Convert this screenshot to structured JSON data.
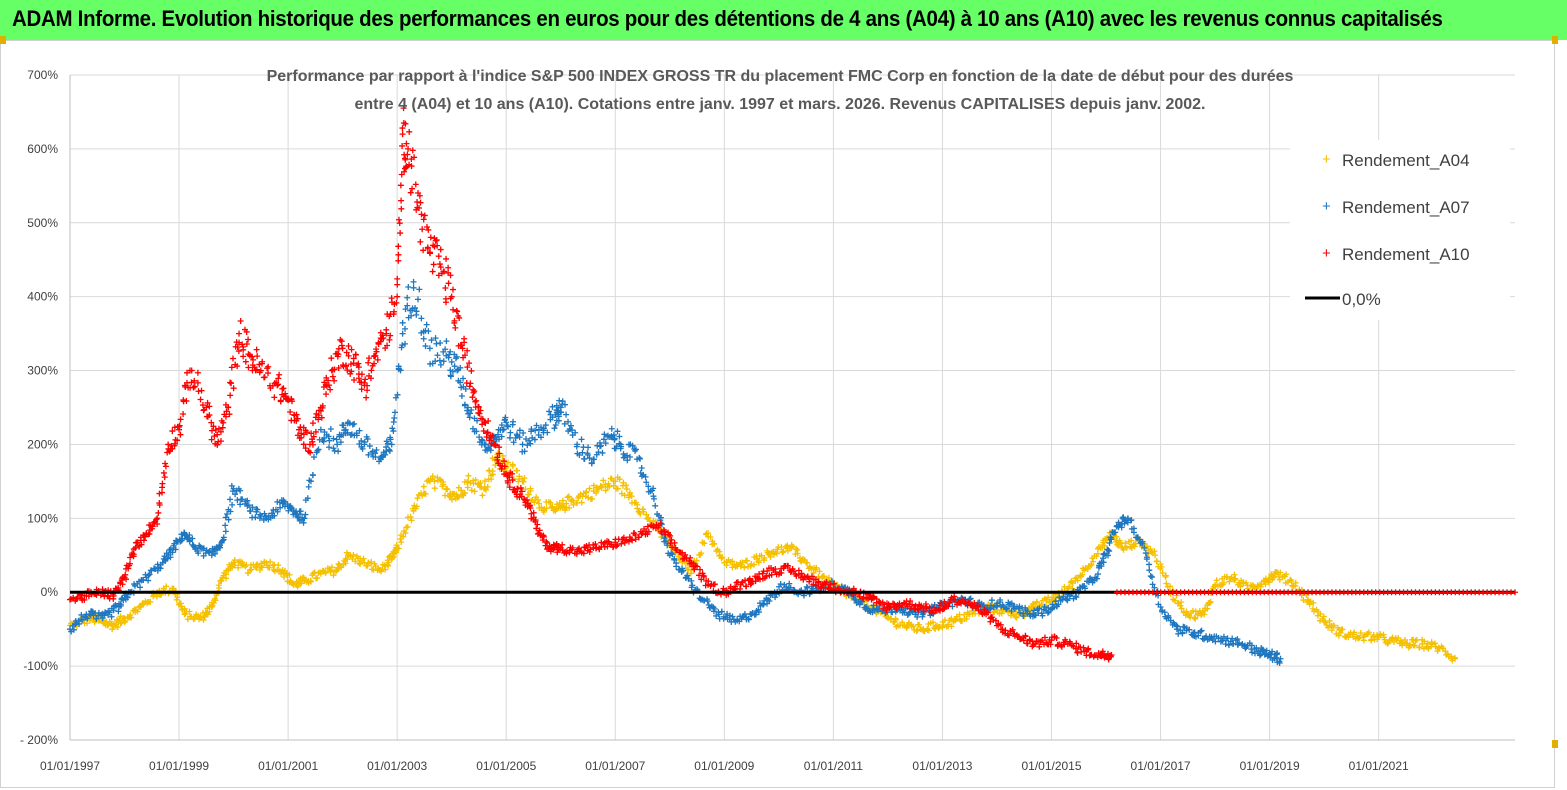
{
  "header": {
    "banner": "ADAM Informe. Evolution historique des performances en euros pour des détentions de 4 ans (A04) à 10 ans (A10) avec les revenus connus capitalisés"
  },
  "colors": {
    "banner_bg": "#66ff66",
    "A04": "#f5c000",
    "A07": "#1f77c0",
    "A10": "#ff0000",
    "zero_line": "#000000"
  },
  "chart_data": {
    "type": "scatter",
    "title_line1": "Performance par rapport à l'indice S&P 500 INDEX GROSS TR  du placement FMC Corp en fonction de la date de début pour des durées",
    "title_line2": "entre 4 (A04) et 10 ans (A10). Cotations entre janv. 1997 et mars. 2026. Revenus CAPITALISES depuis janv. 2002.",
    "xlabel": "",
    "ylabel": "",
    "xlim": [
      1997.0,
      2023.5
    ],
    "ylim": [
      -200,
      700
    ],
    "y_ticks": [
      -200,
      -100,
      0,
      100,
      200,
      300,
      400,
      500,
      600,
      700
    ],
    "y_tick_labels": [
      "- 200%",
      "-100%",
      "0%",
      "100%",
      "200%",
      "300%",
      "400%",
      "500%",
      "600%",
      "700%"
    ],
    "x_ticks": [
      1997,
      1999,
      2001,
      2003,
      2005,
      2007,
      2009,
      2011,
      2013,
      2015,
      2017,
      2019,
      2021
    ],
    "x_tick_labels": [
      "01/01/1997",
      "01/01/1999",
      "01/01/2001",
      "01/01/2003",
      "01/01/2005",
      "01/01/2007",
      "01/01/2009",
      "01/01/2011",
      "01/01/2013",
      "01/01/2015",
      "01/01/2017",
      "01/01/2019",
      "01/01/2021"
    ],
    "legend": [
      "Rendement_A04",
      "Rendement_A07",
      "Rendement_A10",
      "0,0%"
    ],
    "legend_position": "top-right",
    "series": [
      {
        "name": "Rendement_A04",
        "marker": "+",
        "x": [
          1997.0,
          1997.4,
          1997.6,
          1997.8,
          1998.0,
          1998.3,
          1998.6,
          1998.9,
          1999.1,
          1999.4,
          1999.6,
          1999.8,
          2000.0,
          2000.3,
          2000.6,
          2000.9,
          2001.1,
          2001.3,
          2001.6,
          2001.9,
          2002.1,
          2002.4,
          2002.7,
          2002.9,
          2003.0,
          2003.3,
          2003.6,
          2003.9,
          2004.1,
          2004.3,
          2004.6,
          2004.8,
          2005.0,
          2005.3,
          2005.6,
          2005.9,
          2006.1,
          2006.4,
          2006.7,
          2007.0,
          2007.3,
          2007.6,
          2007.9,
          2008.2,
          2008.4,
          2008.7,
          2009.0,
          2009.3,
          2009.6,
          2009.9,
          2010.2,
          2010.5,
          2010.8,
          2011.1,
          2011.4,
          2011.7,
          2012.0,
          2012.3,
          2012.6,
          2012.9,
          2013.2,
          2013.5,
          2013.8,
          2014.1,
          2014.4,
          2014.7,
          2015.0,
          2015.3,
          2015.6,
          2015.9,
          2016.1,
          2016.3,
          2016.6,
          2016.9,
          2017.2,
          2017.5,
          2017.8,
          2018.0,
          2018.3,
          2018.6,
          2018.9,
          2019.1,
          2019.4,
          2019.7,
          2020.0,
          2020.3,
          2020.6,
          2020.9,
          2021.2,
          2021.5,
          2021.8,
          2022.1,
          2022.4
        ],
        "values": [
          -45,
          -35,
          -40,
          -45,
          -35,
          -20,
          0,
          5,
          -30,
          -35,
          -20,
          20,
          40,
          30,
          40,
          30,
          10,
          15,
          25,
          30,
          50,
          40,
          30,
          45,
          60,
          110,
          150,
          140,
          130,
          150,
          140,
          180,
          170,
          150,
          120,
          110,
          120,
          130,
          140,
          150,
          130,
          100,
          75,
          45,
          30,
          80,
          40,
          35,
          45,
          55,
          60,
          40,
          20,
          5,
          -10,
          -20,
          -35,
          -45,
          -50,
          -45,
          -40,
          -30,
          -20,
          -25,
          -30,
          -20,
          -10,
          5,
          30,
          60,
          80,
          60,
          70,
          50,
          0,
          -30,
          -30,
          10,
          20,
          5,
          15,
          25,
          15,
          -10,
          -40,
          -55,
          -60,
          -60,
          -65,
          -70,
          -70,
          -75,
          -90
        ]
      },
      {
        "name": "Rendement_A07",
        "marker": "+",
        "x": [
          1997.0,
          1997.3,
          1997.6,
          1997.9,
          1998.1,
          1998.4,
          1998.7,
          1998.9,
          1999.1,
          1999.3,
          1999.6,
          1999.8,
          2000.0,
          2000.3,
          2000.6,
          2000.9,
          2001.1,
          2001.3,
          2001.6,
          2001.9,
          2002.1,
          2002.4,
          2002.7,
          2002.9,
          2003.1,
          2003.3,
          2003.6,
          2003.9,
          2004.1,
          2004.3,
          2004.6,
          2004.8,
          2005.0,
          2005.3,
          2005.6,
          2005.9,
          2006.0,
          2006.3,
          2006.6,
          2006.9,
          2007.1,
          2007.4,
          2007.7,
          2008.0,
          2008.3,
          2008.6,
          2008.9,
          2009.2,
          2009.5,
          2009.8,
          2010.1,
          2010.4,
          2010.7,
          2011.0,
          2011.3,
          2011.6,
          2011.9,
          2012.2,
          2012.5,
          2012.8,
          2013.1,
          2013.4,
          2013.7,
          2014.0,
          2014.3,
          2014.6,
          2014.9,
          2015.2,
          2015.5,
          2015.8,
          2016.0,
          2016.2,
          2016.4,
          2016.7,
          2017.0,
          2017.3,
          2017.6,
          2017.9,
          2018.2,
          2018.5,
          2018.8,
          2019.0,
          2019.2
        ],
        "values": [
          -50,
          -30,
          -35,
          -20,
          0,
          20,
          40,
          60,
          80,
          60,
          50,
          70,
          140,
          110,
          100,
          120,
          110,
          100,
          220,
          200,
          230,
          200,
          180,
          200,
          350,
          420,
          330,
          320,
          300,
          250,
          200,
          210,
          230,
          200,
          220,
          240,
          250,
          200,
          180,
          210,
          200,
          180,
          130,
          50,
          20,
          -10,
          -30,
          -40,
          -30,
          -10,
          10,
          0,
          5,
          10,
          0,
          -20,
          -25,
          -20,
          -30,
          -25,
          -15,
          -10,
          -20,
          -15,
          -20,
          -30,
          -25,
          -10,
          0,
          20,
          50,
          90,
          100,
          60,
          -20,
          -50,
          -55,
          -60,
          -65,
          -70,
          -80,
          -85,
          -90
        ]
      },
      {
        "name": "Rendement_A10",
        "marker": "+",
        "x": [
          1997.0,
          1997.3,
          1997.6,
          1997.8,
          1998.0,
          1998.2,
          1998.4,
          1998.6,
          1998.8,
          1999.0,
          1999.2,
          1999.5,
          1999.7,
          1999.9,
          2000.1,
          2000.3,
          2000.5,
          2000.8,
          2001.0,
          2001.2,
          2001.4,
          2001.6,
          2001.8,
          2002.0,
          2002.2,
          2002.4,
          2002.6,
          2002.8,
          2003.0,
          2003.1,
          2003.2,
          2003.4,
          2003.6,
          2003.8,
          2004.0,
          2004.2,
          2004.4,
          2004.6,
          2004.8,
          2005.0,
          2005.2,
          2005.4,
          2005.6,
          2005.8,
          2006.0,
          2006.3,
          2006.6,
          2006.9,
          2007.2,
          2007.5,
          2007.8,
          2008.1,
          2008.4,
          2008.7,
          2009.0,
          2009.3,
          2009.6,
          2009.9,
          2010.2,
          2010.5,
          2010.8,
          2011.1,
          2011.4,
          2011.7,
          2012.0,
          2012.3,
          2012.6,
          2012.9,
          2013.2,
          2013.5,
          2013.8,
          2014.1,
          2014.4,
          2014.7,
          2015.0,
          2015.3,
          2015.6,
          2015.9,
          2016.1
        ],
        "values": [
          -10,
          -5,
          0,
          -5,
          20,
          60,
          80,
          100,
          200,
          220,
          300,
          250,
          200,
          250,
          350,
          320,
          300,
          280,
          260,
          220,
          200,
          250,
          300,
          330,
          310,
          280,
          320,
          350,
          400,
          620,
          600,
          520,
          460,
          440,
          400,
          330,
          270,
          230,
          200,
          160,
          140,
          120,
          80,
          60,
          60,
          55,
          60,
          65,
          70,
          80,
          90,
          60,
          40,
          10,
          0,
          10,
          20,
          30,
          30,
          20,
          10,
          5,
          0,
          -10,
          -20,
          -15,
          -20,
          -25,
          -10,
          -15,
          -30,
          -50,
          -60,
          -70,
          -65,
          -70,
          -80,
          -85,
          -85
        ]
      }
    ],
    "reference_line": {
      "name": "0,0%",
      "y": 0
    },
    "a10_flat_tail": {
      "x_start": 2016.2,
      "x_end": 2023.5,
      "value": 0
    }
  }
}
